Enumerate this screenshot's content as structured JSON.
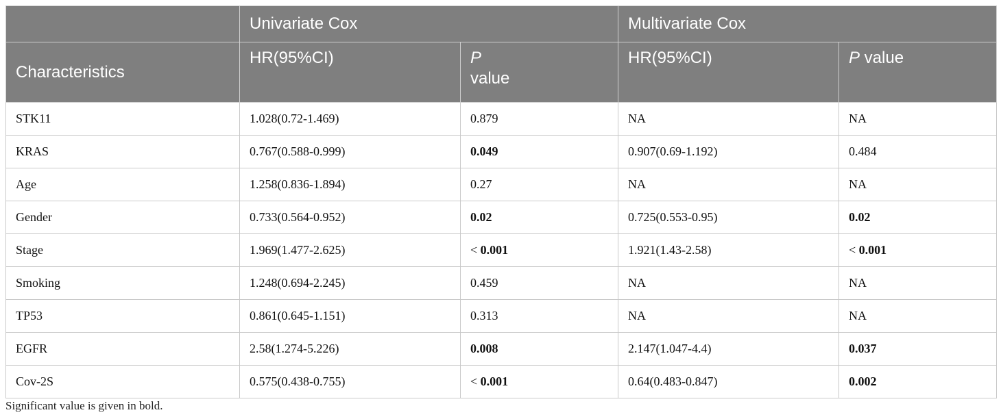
{
  "header": {
    "group_univariate": "Univariate Cox",
    "group_multivariate": "Multivariate Cox",
    "characteristics": "Characteristics",
    "hr_label": "HR(95%CI)",
    "p_italic": "P",
    "p_value_word": "value",
    "p_value_word_multi": " value"
  },
  "rows": [
    {
      "name": "STK11",
      "uni_hr": "1.028(0.72-1.469)",
      "uni_p": "0.879",
      "multi_hr": "NA",
      "multi_p": "NA"
    },
    {
      "name": "KRAS",
      "uni_hr": "0.767(0.588-0.999)",
      "uni_p": "0.049",
      "multi_hr": "0.907(0.69-1.192)",
      "multi_p": "0.484"
    },
    {
      "name": "Age",
      "uni_hr": "1.258(0.836-1.894)",
      "uni_p": "0.27",
      "multi_hr": "NA",
      "multi_p": "NA"
    },
    {
      "name": "Gender",
      "uni_hr": "0.733(0.564-0.952)",
      "uni_p": "0.02",
      "multi_hr": "0.725(0.553-0.95)",
      "multi_p": "0.02"
    },
    {
      "name": "Stage",
      "uni_hr": "1.969(1.477-2.625)",
      "uni_p_prefix": "< ",
      "uni_p": "0.001",
      "multi_hr": "1.921(1.43-2.58)",
      "multi_p_prefix": "< ",
      "multi_p": "0.001"
    },
    {
      "name": "Smoking",
      "uni_hr": "1.248(0.694-2.245)",
      "uni_p": "0.459",
      "multi_hr": "NA",
      "multi_p": "NA"
    },
    {
      "name": "TP53",
      "uni_hr": "0.861(0.645-1.151)",
      "uni_p": "0.313",
      "multi_hr": "NA",
      "multi_p": "NA"
    },
    {
      "name": "EGFR",
      "uni_hr": "2.58(1.274-5.226)",
      "uni_p": "0.008",
      "multi_hr": "2.147(1.047-4.4)",
      "multi_p": "0.037"
    },
    {
      "name": "Cov-2S",
      "uni_hr": "0.575(0.438-0.755)",
      "uni_p_prefix": "< ",
      "uni_p": "0.001",
      "multi_hr": "0.64(0.483-0.847)",
      "multi_p": "0.002"
    }
  ],
  "caption": "Significant value is given in bold.",
  "colors": {
    "header_bg": "#7f7f7f",
    "header_text": "#ffffff",
    "border": "#c8c8c8"
  }
}
